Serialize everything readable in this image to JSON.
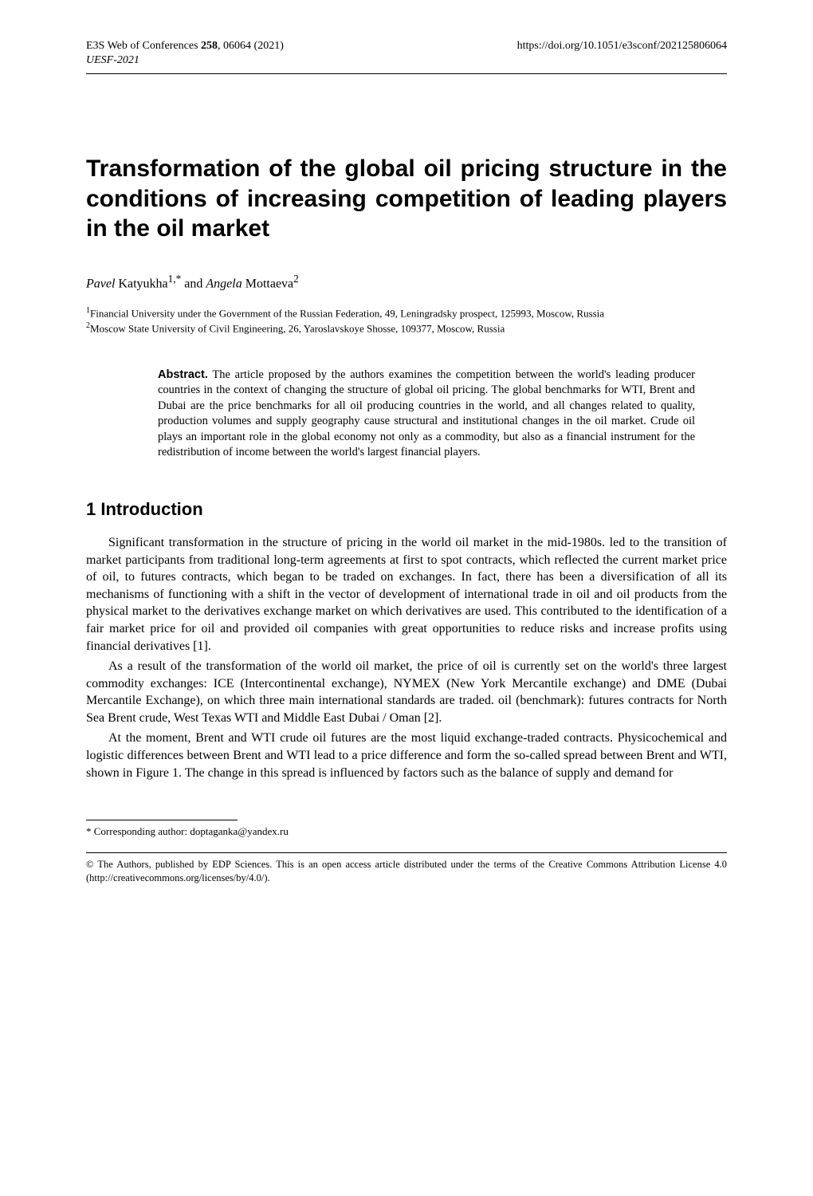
{
  "header": {
    "journal_left_prefix": "E3S Web of Conferences ",
    "journal_volume": "258",
    "journal_left_suffix": ", 06064 (2021)",
    "doi": "https://doi.org/10.1051/e3sconf/202125806064",
    "conference_line": "UESF-2021"
  },
  "title": "Transformation of the global oil pricing structure in the conditions of increasing competition of leading players in the oil market",
  "authors": {
    "a1_first": "Pavel",
    "a1_last": " Katyukha",
    "a1_sup": "1,*",
    "joiner": " and ",
    "a2_first": "Angela",
    "a2_last": " Mottaeva",
    "a2_sup": "2"
  },
  "affiliations": {
    "aff1": "Financial University under the Government of the Russian Federation, 49, Leningradsky prospect, 125993, Moscow, Russia",
    "aff2": "Moscow State University of Civil Engineering, 26, Yaroslavskoye Shosse, 109377, Moscow, Russia"
  },
  "abstract": {
    "label": "Abstract.",
    "text": " The article proposed by the authors examines the competition between the world's leading producer countries in the context of changing the structure of global oil pricing. The global benchmarks for WTI, Brent and Dubai are the price benchmarks for all oil producing countries in the world, and all changes related to quality, production volumes and supply geography cause structural and institutional changes in the oil market. Crude oil plays an important role in the global economy not only as a commodity, but also as a financial instrument for the redistribution of income between the world's largest financial players."
  },
  "section1": {
    "heading": "1 Introduction",
    "p1": "Significant transformation in the structure of pricing in the world oil market in the mid-1980s. led to the transition of market participants from traditional long-term agreements at first to spot contracts, which reflected the current market price of oil, to futures contracts, which began to be traded on exchanges. In fact, there has been a diversification of all its mechanisms of functioning with a shift in the vector of development of international trade in oil and oil products from the physical market to the derivatives exchange market on which derivatives are used. This contributed to the identification of a fair market price for oil and provided oil companies with great opportunities to reduce risks and increase profits using financial derivatives [1].",
    "p2": "As a result of the transformation of the world oil market, the price of oil is currently set on the world's three largest commodity exchanges: ICE (Intercontinental exchange), NYMEX (New York Mercantile exchange) and DME (Dubai Mercantile Exchange), on which three main international standards are traded. oil (benchmark): futures contracts for North Sea Brent crude, West Texas WTI and Middle East Dubai / Oman [2].",
    "p3": "At the moment, Brent and WTI crude oil futures are the most liquid exchange-traded contracts. Physicochemical and logistic differences between Brent and WTI lead to a price difference and form the so-called spread between Brent and WTI, shown in Figure 1. The change in this spread is influenced by factors such as the balance of supply and demand for"
  },
  "footnote": {
    "marker": "*",
    "text": " Corresponding author: doptaganka@yandex.ru"
  },
  "license": "© The Authors, published by EDP Sciences. This is an open access article distributed under the terms of the Creative Commons Attribution License 4.0 (http://creativecommons.org/licenses/by/4.0/)."
}
